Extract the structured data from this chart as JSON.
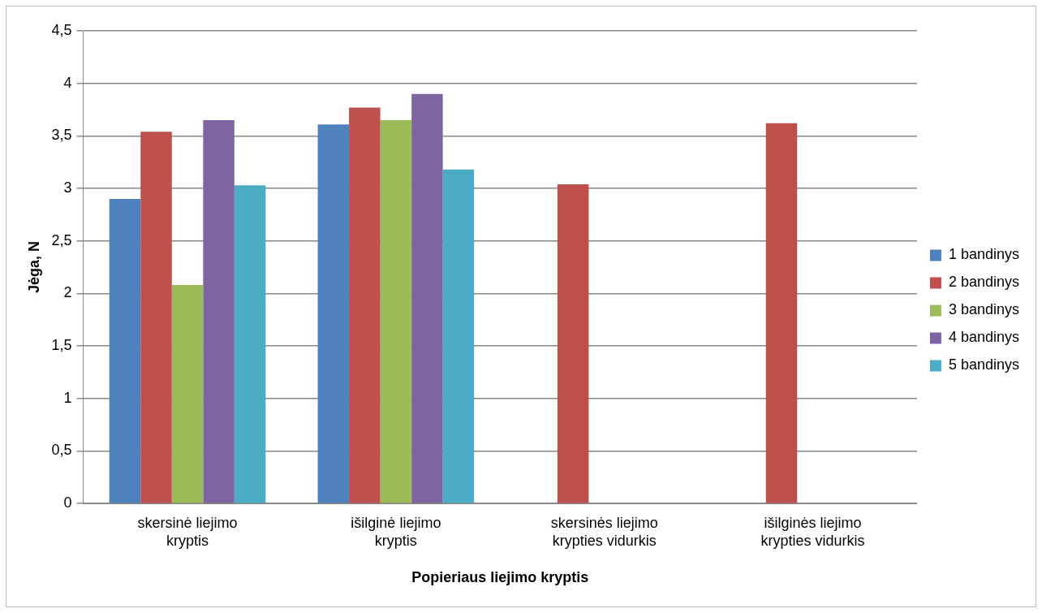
{
  "chart_data": {
    "type": "bar",
    "xlabel": "Popieriaus liejimo kryptis",
    "ylabel": "Jėga, N",
    "categories": [
      "skersinė liejimo kryptis",
      "išilginė liejimo kryptis",
      "skersinės liejimo krypties vidurkis",
      "išilginės liejimo krypties vidurkis"
    ],
    "series": [
      {
        "name": "1 bandinys",
        "color": "#4f81bd",
        "values": [
          2.9,
          3.61,
          null,
          null
        ]
      },
      {
        "name": "2 bandinys",
        "color": "#c0504d",
        "values": [
          3.54,
          3.77,
          3.04,
          3.62
        ]
      },
      {
        "name": "3 bandinys",
        "color": "#9bbb59",
        "values": [
          2.08,
          3.65,
          null,
          null
        ]
      },
      {
        "name": "4 bandinys",
        "color": "#8064a2",
        "values": [
          3.65,
          3.9,
          null,
          null
        ]
      },
      {
        "name": "5 bandinys",
        "color": "#4bacc6",
        "values": [
          3.03,
          3.18,
          null,
          null
        ]
      }
    ],
    "ylim": [
      0,
      4.5
    ],
    "yticks": [
      {
        "value": 0,
        "label": "0"
      },
      {
        "value": 0.5,
        "label": "0,5"
      },
      {
        "value": 1,
        "label": "1"
      },
      {
        "value": 1.5,
        "label": "1,5"
      },
      {
        "value": 2,
        "label": "2"
      },
      {
        "value": 2.5,
        "label": "2,5"
      },
      {
        "value": 3,
        "label": "3"
      },
      {
        "value": 3.5,
        "label": "3,5"
      },
      {
        "value": 4,
        "label": "4"
      },
      {
        "value": 4.5,
        "label": "4,5"
      }
    ],
    "grid": "y",
    "legend": "right"
  }
}
